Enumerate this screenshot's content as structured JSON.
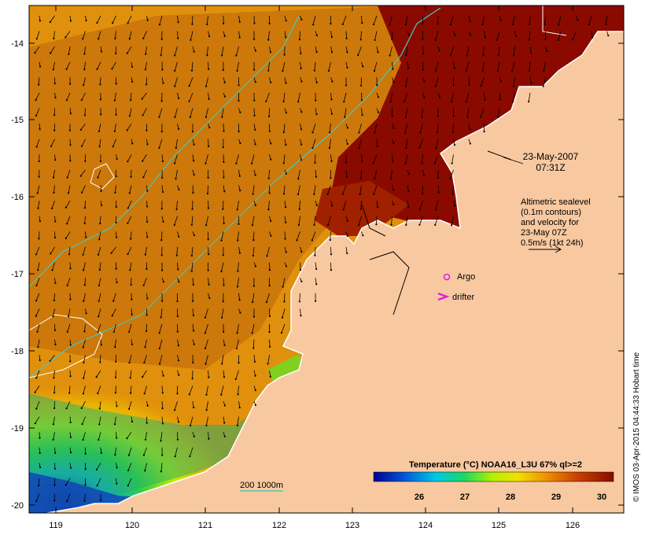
{
  "map": {
    "timestamp_date": "23-May-2007",
    "timestamp_time": "07:31Z",
    "altimetry_lines": [
      "Altimetric sealevel",
      "(0.1m contours)",
      "and velocity for",
      "23-May 07Z",
      "0.5m/s (1kt 24h)"
    ],
    "legend_argo": "Argo",
    "legend_drifter": "drifter",
    "bathymetry_legend": "200  1000m",
    "credit": "© IMOS 03-Apr-2015 04:44:33 Hobart time",
    "x_ticks": [
      "119",
      "120",
      "121",
      "122",
      "123",
      "124",
      "125",
      "126"
    ],
    "y_ticks": [
      "-14",
      "-15",
      "-16",
      "-17",
      "-18",
      "-19",
      "-20"
    ],
    "colorbar": {
      "title": "Temperature (°C) NOAA16_L3U 67% ql>=2",
      "ticks": [
        "26",
        "27",
        "28",
        "29",
        "30"
      ]
    },
    "colors": {
      "land": "#f8c9a0",
      "coast_line": "#ffffff",
      "bathy_contour": "#48c8c0",
      "argo_marker": "#e020e0",
      "drifter_marker": "#e020e0",
      "warm_sst": "#8a0a00",
      "cool_sst": "#0a2a9a"
    }
  }
}
